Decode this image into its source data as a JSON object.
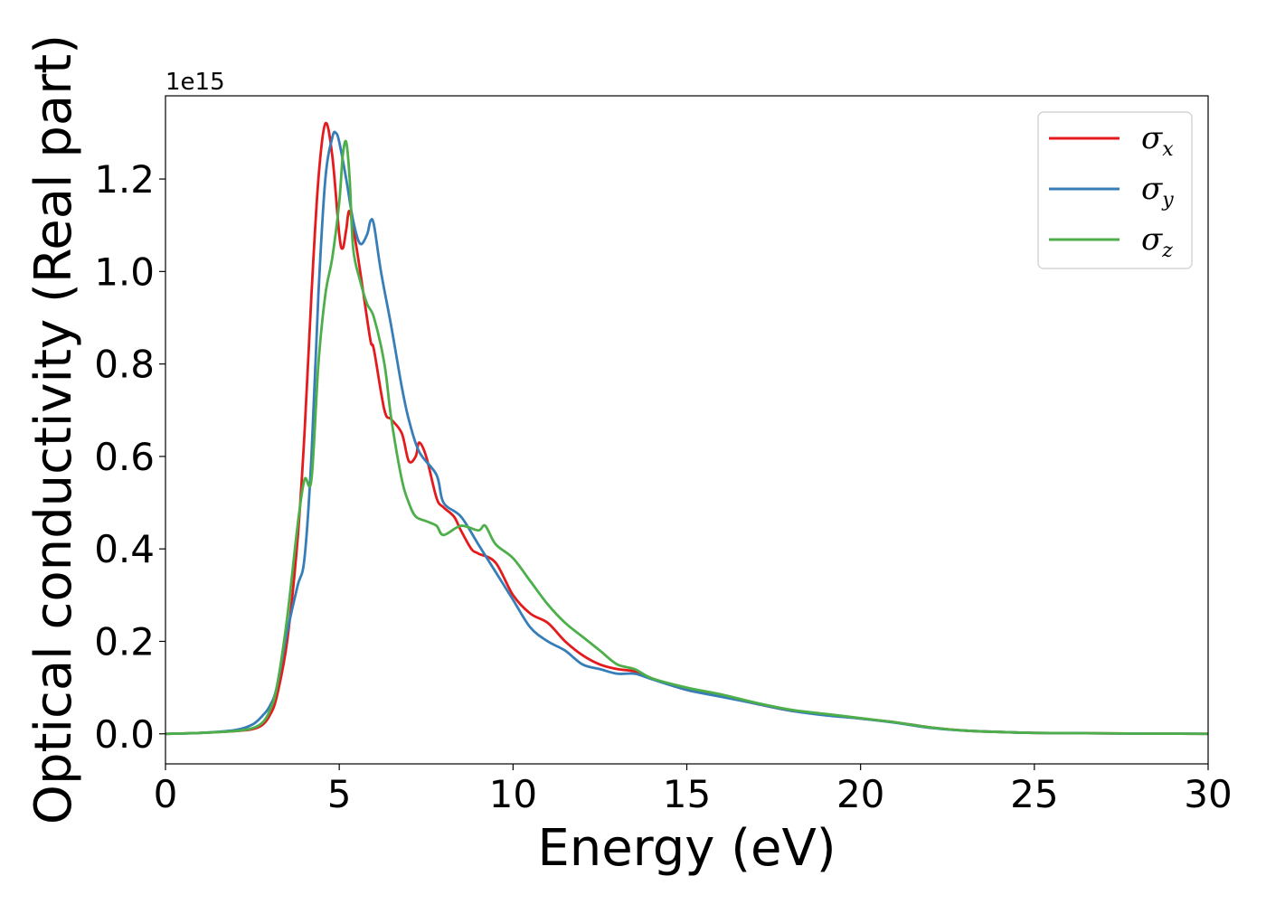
{
  "chart_data": {
    "type": "line",
    "title": "",
    "xlabel": "Energy (eV)",
    "ylabel": "Optical conductivity (Real part)",
    "y_offset_text": "1e15",
    "y_scale": 1000000000000000.0,
    "xlim": [
      0,
      30
    ],
    "ylim": [
      -0.065,
      1.38
    ],
    "xticks": [
      0,
      5,
      10,
      15,
      20,
      25,
      30
    ],
    "xtick_labels": [
      "0",
      "5",
      "10",
      "15",
      "20",
      "25",
      "30"
    ],
    "yticks": [
      0.0,
      0.2,
      0.4,
      0.6,
      0.8,
      1.0,
      1.2
    ],
    "ytick_labels": [
      "0.0",
      "0.2",
      "0.4",
      "0.6",
      "0.8",
      "1.0",
      "1.2"
    ],
    "grid": false,
    "legend_position": "top-right",
    "series": [
      {
        "name": "σx",
        "symbol": "σ",
        "subscript": "x",
        "color": "#e41a1c",
        "x": [
          0,
          1,
          2,
          2.5,
          2.8,
          3.0,
          3.2,
          3.5,
          3.8,
          4.0,
          4.2,
          4.4,
          4.6,
          4.8,
          5.0,
          5.1,
          5.2,
          5.3,
          5.5,
          5.7,
          5.9,
          6.0,
          6.3,
          6.5,
          6.8,
          7.0,
          7.2,
          7.3,
          7.5,
          7.8,
          8.0,
          8.3,
          8.5,
          8.8,
          9.0,
          9.5,
          10.0,
          10.5,
          11.0,
          11.5,
          12.0,
          12.5,
          13.0,
          13.5,
          14.0,
          15.0,
          16.0,
          17.0,
          18.0,
          19.0,
          20.0,
          21.0,
          22.0,
          23.0,
          24.0,
          25.0,
          27.0,
          30.0
        ],
        "y": [
          0.0,
          0.002,
          0.006,
          0.01,
          0.02,
          0.04,
          0.08,
          0.2,
          0.42,
          0.65,
          0.95,
          1.2,
          1.32,
          1.25,
          1.08,
          1.05,
          1.09,
          1.13,
          1.05,
          0.95,
          0.85,
          0.83,
          0.7,
          0.68,
          0.65,
          0.59,
          0.6,
          0.63,
          0.6,
          0.51,
          0.49,
          0.47,
          0.44,
          0.4,
          0.39,
          0.37,
          0.3,
          0.26,
          0.24,
          0.2,
          0.17,
          0.15,
          0.14,
          0.135,
          0.12,
          0.095,
          0.082,
          0.065,
          0.05,
          0.042,
          0.033,
          0.025,
          0.014,
          0.007,
          0.004,
          0.002,
          0.001,
          0.0
        ]
      },
      {
        "name": "σy",
        "symbol": "σ",
        "subscript": "y",
        "color": "#377eb8",
        "x": [
          0,
          1,
          2,
          2.5,
          2.8,
          3.0,
          3.2,
          3.5,
          3.8,
          4.0,
          4.2,
          4.4,
          4.6,
          4.8,
          4.9,
          5.0,
          5.2,
          5.4,
          5.6,
          5.8,
          5.9,
          6.0,
          6.2,
          6.5,
          6.8,
          7.0,
          7.3,
          7.8,
          8.0,
          8.5,
          9.0,
          9.5,
          10.0,
          10.5,
          11.0,
          11.5,
          12.0,
          12.5,
          13.0,
          13.5,
          14.0,
          15.0,
          16.0,
          17.0,
          18.0,
          19.0,
          20.0,
          21.0,
          22.0,
          23.0,
          24.0,
          25.0,
          27.0,
          30.0
        ],
        "y": [
          0.0,
          0.002,
          0.008,
          0.02,
          0.04,
          0.06,
          0.1,
          0.22,
          0.32,
          0.38,
          0.6,
          0.95,
          1.2,
          1.29,
          1.3,
          1.28,
          1.2,
          1.11,
          1.06,
          1.08,
          1.11,
          1.1,
          1.0,
          0.88,
          0.75,
          0.68,
          0.61,
          0.56,
          0.5,
          0.47,
          0.41,
          0.35,
          0.29,
          0.23,
          0.2,
          0.18,
          0.15,
          0.14,
          0.13,
          0.13,
          0.118,
          0.095,
          0.08,
          0.065,
          0.05,
          0.04,
          0.033,
          0.024,
          0.013,
          0.007,
          0.004,
          0.002,
          0.001,
          0.0
        ]
      },
      {
        "name": "σz",
        "symbol": "σ",
        "subscript": "z",
        "color": "#4daf4a",
        "x": [
          0,
          1,
          2,
          2.5,
          2.8,
          3.0,
          3.2,
          3.5,
          3.8,
          4.0,
          4.2,
          4.4,
          4.6,
          4.8,
          5.0,
          5.1,
          5.2,
          5.3,
          5.4,
          5.6,
          5.8,
          6.0,
          6.3,
          6.5,
          6.8,
          7.0,
          7.2,
          7.5,
          7.8,
          8.0,
          8.5,
          9.0,
          9.2,
          9.5,
          10.0,
          10.5,
          11.0,
          11.5,
          12.0,
          12.5,
          13.0,
          13.5,
          14.0,
          15.0,
          16.0,
          17.0,
          18.0,
          19.0,
          20.0,
          21.0,
          22.0,
          23.0,
          24.0,
          25.0,
          27.0,
          30.0
        ],
        "y": [
          0.0,
          0.002,
          0.006,
          0.012,
          0.025,
          0.05,
          0.1,
          0.25,
          0.45,
          0.55,
          0.55,
          0.8,
          0.95,
          1.03,
          1.15,
          1.25,
          1.28,
          1.2,
          1.05,
          0.98,
          0.93,
          0.9,
          0.8,
          0.68,
          0.55,
          0.5,
          0.47,
          0.46,
          0.45,
          0.43,
          0.45,
          0.44,
          0.45,
          0.41,
          0.38,
          0.33,
          0.28,
          0.24,
          0.21,
          0.18,
          0.15,
          0.14,
          0.12,
          0.1,
          0.085,
          0.067,
          0.052,
          0.043,
          0.034,
          0.025,
          0.014,
          0.007,
          0.004,
          0.002,
          0.001,
          0.0
        ]
      }
    ]
  }
}
